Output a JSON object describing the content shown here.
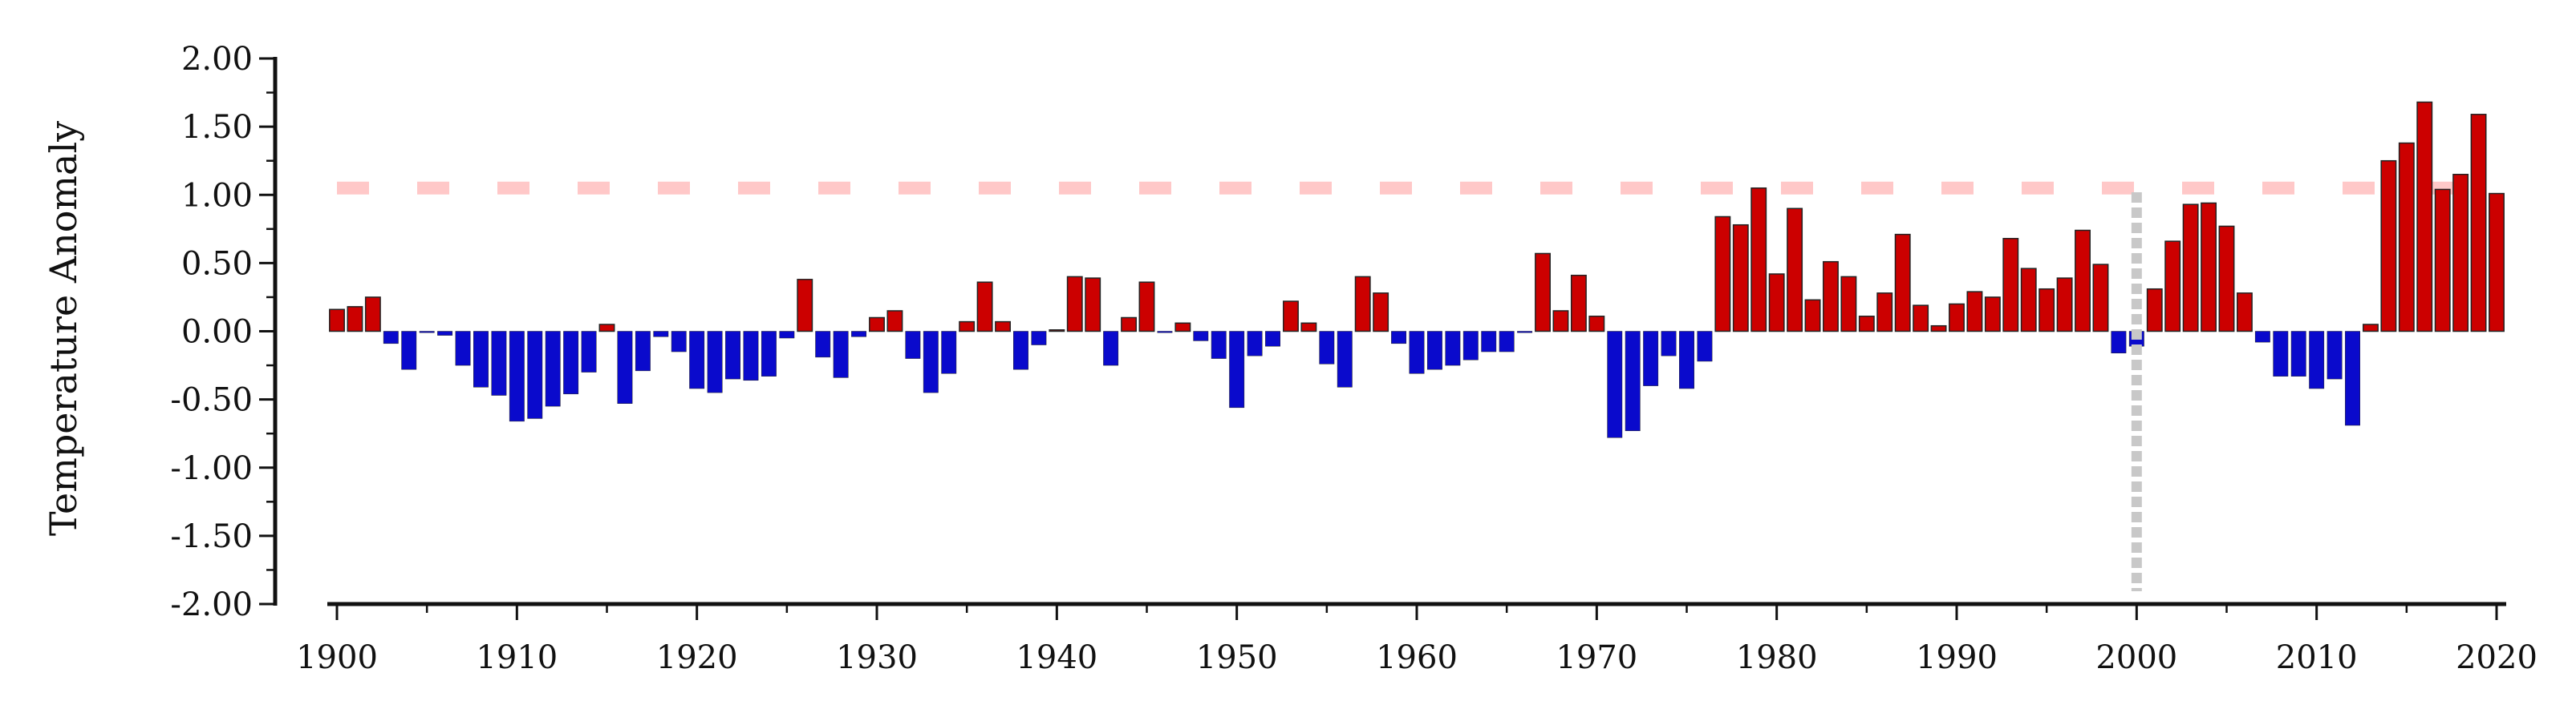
{
  "chart_data": {
    "type": "bar",
    "title": "",
    "xlabel": "",
    "ylabel": "Temperature Anomaly",
    "xlim": [
      1900,
      2020
    ],
    "ylim": [
      -2.0,
      2.0
    ],
    "y_ticks": [
      "2.00",
      "1.50",
      "1.00",
      "0.50",
      "0.00",
      "-0.50",
      "-1.00",
      "-1.50",
      "-2.00"
    ],
    "x_ticks": [
      "1900",
      "1910",
      "1920",
      "1930",
      "1940",
      "1950",
      "1960",
      "1970",
      "1980",
      "1990",
      "2000",
      "2010",
      "2020"
    ],
    "grid": false,
    "legend": "none",
    "colors": {
      "positive": "#cc0000",
      "negative": "#0a0acc",
      "threshold": "#ffc8c8",
      "marker": "#c8c8c8",
      "bar_edge": "#222222"
    },
    "reference_line": {
      "y": 1.05,
      "style": "dashed"
    },
    "vertical_marker": {
      "x": 2000,
      "style": "dotted"
    },
    "x": [
      1900,
      1901,
      1902,
      1903,
      1904,
      1905,
      1906,
      1907,
      1908,
      1909,
      1910,
      1911,
      1912,
      1913,
      1914,
      1915,
      1916,
      1917,
      1918,
      1919,
      1920,
      1921,
      1922,
      1923,
      1924,
      1925,
      1926,
      1927,
      1928,
      1929,
      1930,
      1931,
      1932,
      1933,
      1934,
      1935,
      1936,
      1937,
      1938,
      1939,
      1940,
      1941,
      1942,
      1943,
      1944,
      1945,
      1946,
      1947,
      1948,
      1949,
      1950,
      1951,
      1952,
      1953,
      1954,
      1955,
      1956,
      1957,
      1958,
      1959,
      1960,
      1961,
      1962,
      1963,
      1964,
      1965,
      1966,
      1967,
      1968,
      1969,
      1970,
      1971,
      1972,
      1973,
      1974,
      1975,
      1976,
      1977,
      1978,
      1979,
      1980,
      1981,
      1982,
      1983,
      1984,
      1985,
      1986,
      1987,
      1988,
      1989,
      1990,
      1991,
      1992,
      1993,
      1994,
      1995,
      1996,
      1997,
      1998,
      1999,
      2000,
      2001,
      2002,
      2003,
      2004,
      2005,
      2006,
      2007,
      2008,
      2009,
      2010,
      2011,
      2012,
      2013,
      2014,
      2015,
      2016,
      2017,
      2018,
      2019,
      2020
    ],
    "values": [
      0.16,
      0.18,
      0.25,
      -0.09,
      -0.28,
      -0.01,
      -0.03,
      -0.25,
      -0.41,
      -0.47,
      -0.66,
      -0.64,
      -0.55,
      -0.46,
      -0.3,
      0.05,
      -0.53,
      -0.29,
      -0.04,
      -0.15,
      -0.42,
      -0.45,
      -0.35,
      -0.36,
      -0.33,
      -0.05,
      0.38,
      -0.19,
      -0.34,
      -0.04,
      0.1,
      0.15,
      -0.2,
      -0.45,
      -0.31,
      0.07,
      0.36,
      0.07,
      -0.28,
      -0.1,
      0.01,
      0.4,
      0.39,
      -0.25,
      0.1,
      0.36,
      -0.01,
      0.06,
      -0.07,
      -0.2,
      -0.56,
      -0.18,
      -0.11,
      0.22,
      0.06,
      -0.24,
      -0.41,
      0.4,
      0.28,
      -0.09,
      -0.31,
      -0.28,
      -0.25,
      -0.21,
      -0.15,
      -0.15,
      -0.01,
      0.57,
      0.15,
      0.41,
      0.11,
      -0.78,
      -0.73,
      -0.4,
      -0.18,
      -0.42,
      -0.22,
      0.84,
      0.78,
      1.05,
      0.42,
      0.9,
      0.23,
      0.51,
      0.4,
      0.11,
      0.28,
      0.71,
      0.19,
      0.04,
      0.2,
      0.29,
      0.25,
      0.68,
      0.46,
      0.31,
      0.39,
      0.74,
      0.49,
      -0.16,
      -0.11,
      0.31,
      0.66,
      0.93,
      0.94,
      0.77,
      0.28,
      -0.08,
      -0.33,
      -0.33,
      -0.42,
      -0.35,
      -0.69,
      0.05,
      1.25,
      1.38,
      1.68,
      1.04,
      1.15,
      1.59,
      1.01
    ]
  }
}
